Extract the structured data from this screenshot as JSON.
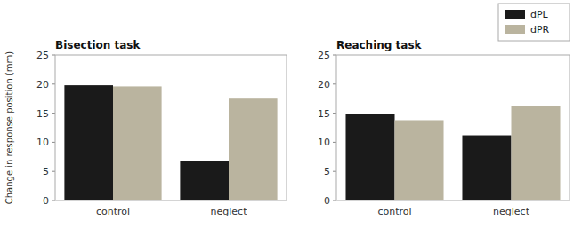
{
  "chart_data": [
    {
      "type": "bar",
      "title": "Bisection task",
      "y_label": "Change in response position (mm)",
      "categories": [
        "control",
        "neglect"
      ],
      "series": [
        {
          "name": "dPL",
          "color": "#1a1a1a",
          "values": [
            19.8,
            6.8
          ]
        },
        {
          "name": "dPR",
          "color": "#bab49f",
          "values": [
            19.6,
            17.5
          ]
        }
      ],
      "ylim": [
        0,
        25
      ],
      "yticks": [
        0,
        5,
        10,
        15,
        20,
        25
      ],
      "grid": false
    },
    {
      "type": "bar",
      "title": "Reaching task",
      "categories": [
        "control",
        "neglect"
      ],
      "series": [
        {
          "name": "dPL",
          "color": "#1a1a1a",
          "values": [
            14.8,
            11.2
          ]
        },
        {
          "name": "dPR",
          "color": "#bab49f",
          "values": [
            13.8,
            16.2
          ]
        }
      ],
      "ylim": [
        0,
        25
      ],
      "yticks": [
        0,
        5,
        10,
        15,
        20,
        25
      ],
      "grid": false,
      "legend": "upper right"
    }
  ]
}
